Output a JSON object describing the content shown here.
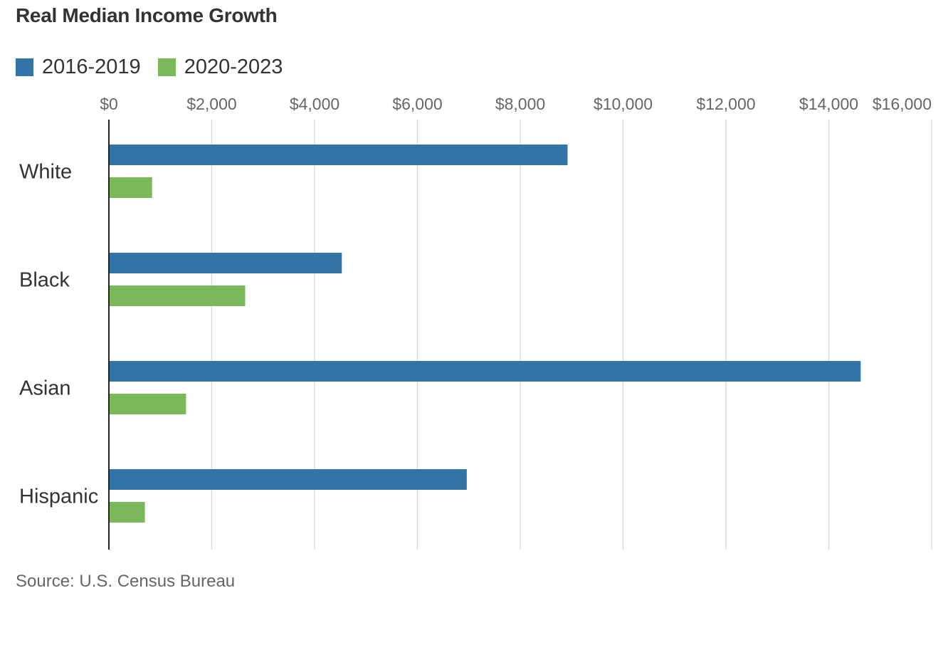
{
  "chart_data": {
    "type": "bar",
    "orientation": "horizontal",
    "title": "Real Median Income Growth",
    "categories": [
      "White",
      "Black",
      "Asian",
      "Hispanic"
    ],
    "series": [
      {
        "name": "2016-2019",
        "color": "#3274a8",
        "values": [
          8920,
          4530,
          14620,
          6960
        ]
      },
      {
        "name": "2020-2023",
        "color": "#79b95a",
        "values": [
          840,
          2650,
          1500,
          700
        ]
      }
    ],
    "x_ticks": [
      "$0",
      "$2,000",
      "$4,000",
      "$6,000",
      "$8,000",
      "$10,000",
      "$12,000",
      "$14,000",
      "$16,000"
    ],
    "xlim": [
      0,
      16000
    ],
    "grid": true,
    "legend_position": "top-left",
    "source": "Source: U.S. Census Bureau"
  }
}
